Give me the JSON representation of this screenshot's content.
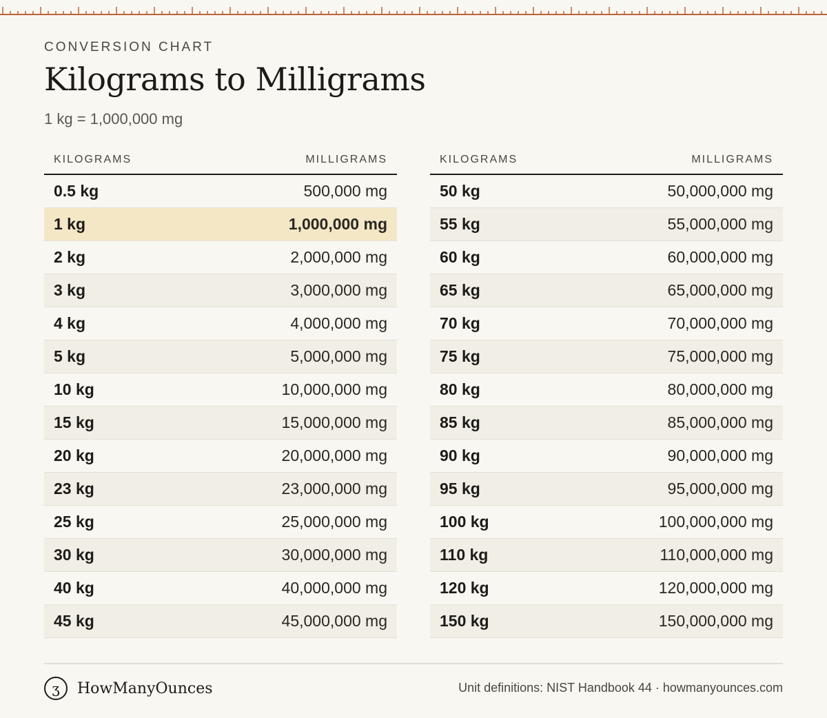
{
  "header": {
    "eyebrow": "CONVERSION CHART",
    "title": "Kilograms to Milligrams",
    "subtitle": "1 kg = 1,000,000 mg"
  },
  "columns": {
    "kg": "KILOGRAMS",
    "mg": "MILLIGRAMS"
  },
  "left_rows": [
    {
      "kg": "0.5 kg",
      "mg": "500,000 mg"
    },
    {
      "kg": "1 kg",
      "mg": "1,000,000 mg"
    },
    {
      "kg": "2 kg",
      "mg": "2,000,000 mg"
    },
    {
      "kg": "3 kg",
      "mg": "3,000,000 mg"
    },
    {
      "kg": "4 kg",
      "mg": "4,000,000 mg"
    },
    {
      "kg": "5 kg",
      "mg": "5,000,000 mg"
    },
    {
      "kg": "10 kg",
      "mg": "10,000,000 mg"
    },
    {
      "kg": "15 kg",
      "mg": "15,000,000 mg"
    },
    {
      "kg": "20 kg",
      "mg": "20,000,000 mg"
    },
    {
      "kg": "23 kg",
      "mg": "23,000,000 mg"
    },
    {
      "kg": "25 kg",
      "mg": "25,000,000 mg"
    },
    {
      "kg": "30 kg",
      "mg": "30,000,000 mg"
    },
    {
      "kg": "40 kg",
      "mg": "40,000,000 mg"
    },
    {
      "kg": "45 kg",
      "mg": "45,000,000 mg"
    }
  ],
  "right_rows": [
    {
      "kg": "50 kg",
      "mg": "50,000,000 mg"
    },
    {
      "kg": "55 kg",
      "mg": "55,000,000 mg"
    },
    {
      "kg": "60 kg",
      "mg": "60,000,000 mg"
    },
    {
      "kg": "65 kg",
      "mg": "65,000,000 mg"
    },
    {
      "kg": "70 kg",
      "mg": "70,000,000 mg"
    },
    {
      "kg": "75 kg",
      "mg": "75,000,000 mg"
    },
    {
      "kg": "80 kg",
      "mg": "80,000,000 mg"
    },
    {
      "kg": "85 kg",
      "mg": "85,000,000 mg"
    },
    {
      "kg": "90 kg",
      "mg": "90,000,000 mg"
    },
    {
      "kg": "95 kg",
      "mg": "95,000,000 mg"
    },
    {
      "kg": "100 kg",
      "mg": "100,000,000 mg"
    },
    {
      "kg": "110 kg",
      "mg": "110,000,000 mg"
    },
    {
      "kg": "120 kg",
      "mg": "120,000,000 mg"
    },
    {
      "kg": "150 kg",
      "mg": "150,000,000 mg"
    }
  ],
  "footer": {
    "logo_glyph": "ʒ",
    "brand": "HowManyOunces",
    "source": "Unit definitions: NIST Handbook 44 · howmanyounces.com"
  },
  "colors": {
    "background": "#f9f7f2",
    "ruler": "#b8653a",
    "highlight": "#f3e7c6",
    "alt_row": "#f1eee6"
  }
}
